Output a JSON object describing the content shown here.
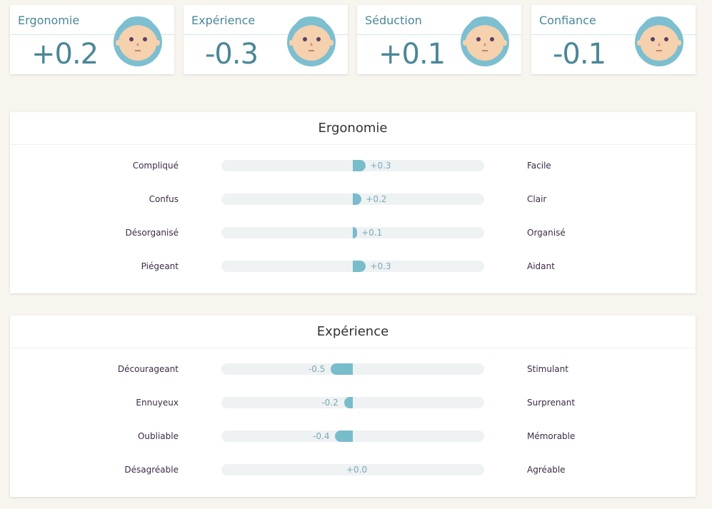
{
  "summary": [
    {
      "title": "Ergonomie",
      "value": "+0.2"
    },
    {
      "title": "Expérience",
      "value": "-0.3"
    },
    {
      "title": "Séduction",
      "value": "+0.1"
    },
    {
      "title": "Confiance",
      "value": "-0.1"
    }
  ],
  "colors": {
    "accent": "#79bccc",
    "text": "#4a8798",
    "track": "#eef2f3",
    "background": "#f8f5ef"
  },
  "scale": {
    "min": -3,
    "max": 3
  },
  "sections": [
    {
      "title": "Ergonomie",
      "rows": [
        {
          "left": "Compliqué",
          "right": "Facile",
          "value": 0.3,
          "label": "+0.3"
        },
        {
          "left": "Confus",
          "right": "Clair",
          "value": 0.2,
          "label": "+0.2"
        },
        {
          "left": "Désorganisé",
          "right": "Organisé",
          "value": 0.1,
          "label": "+0.1"
        },
        {
          "left": "Piégeant",
          "right": "Aidant",
          "value": 0.3,
          "label": "+0.3"
        }
      ]
    },
    {
      "title": "Expérience",
      "rows": [
        {
          "left": "Décourageant",
          "right": "Stimulant",
          "value": -0.5,
          "label": "-0.5"
        },
        {
          "left": "Ennuyeux",
          "right": "Surprenant",
          "value": -0.2,
          "label": "-0.2"
        },
        {
          "left": "Oubliable",
          "right": "Mémorable",
          "value": -0.4,
          "label": "-0.4"
        },
        {
          "left": "Désagréable",
          "right": "Agréable",
          "value": 0.0,
          "label": "+0.0"
        }
      ]
    }
  ]
}
